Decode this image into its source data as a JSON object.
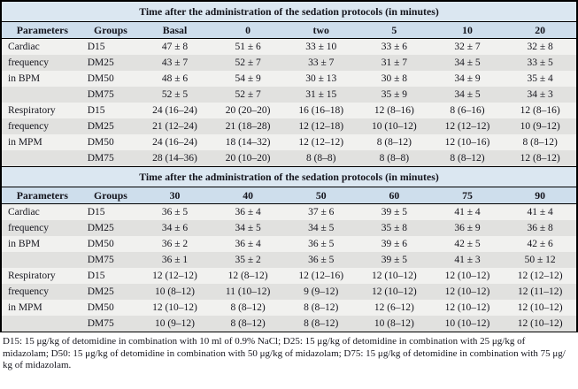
{
  "colors": {
    "title_bg": "#dbe7f1",
    "header_bg": "#cedeec",
    "row_light": "#f1f1ef",
    "row_dark": "#e1e1df",
    "border": "#000000",
    "text": "#15151d"
  },
  "tables": [
    {
      "title": "Time after the administration of the sedation protocols (in minutes)",
      "headers": [
        "Parameters",
        "Groups",
        "Basal",
        "0",
        "two",
        "5",
        "10",
        "20"
      ],
      "rows": [
        {
          "parameter": "Cardiac",
          "group": "D15",
          "values": [
            "47 ± 8",
            "51 ± 6",
            "33 ± 10",
            "33 ± 6",
            "32 ± 7",
            "32 ± 8"
          ]
        },
        {
          "parameter": "frequency",
          "group": "DM25",
          "values": [
            "43 ± 7",
            "52 ± 7",
            "33 ± 7",
            "31 ± 7",
            "34 ± 5",
            "33 ± 5"
          ]
        },
        {
          "parameter": "in BPM",
          "group": "DM50",
          "values": [
            "48 ± 6",
            "54 ± 9",
            "30 ± 13",
            "30 ± 8",
            "34 ± 9",
            "35 ± 4"
          ]
        },
        {
          "parameter": "",
          "group": "DM75",
          "values": [
            "52 ± 5",
            "52 ± 7",
            "31 ± 15",
            "35 ± 9",
            "34 ± 5",
            "34 ± 3"
          ]
        },
        {
          "parameter": "Respiratory",
          "group": "D15",
          "values": [
            "24 (16–24)",
            "20 (20–20)",
            "16 (16–18)",
            "12 (8–16)",
            "8 (6–16)",
            "12 (8–16)"
          ]
        },
        {
          "parameter": "frequency",
          "group": "DM25",
          "values": [
            "21 (12–24)",
            "21 (18–28)",
            "12 (12–18)",
            "10 (10–12)",
            "12 (12–12)",
            "10 (9–12)"
          ]
        },
        {
          "parameter": "in MPM",
          "group": "DM50",
          "values": [
            "24 (16–24)",
            "18 (14–32)",
            "12 (12–12)",
            "8 (8–12)",
            "12 (10–16)",
            "8 (8–12)"
          ]
        },
        {
          "parameter": "",
          "group": "DM75",
          "values": [
            "28 (14–36)",
            "20 (10–20)",
            "8 (8–8)",
            "8 (8–8)",
            "8 (8–12)",
            "12 (8–12)"
          ]
        }
      ]
    },
    {
      "title": "Time after the administration of the sedation protocols (in minutes)",
      "headers": [
        "Parameters",
        "Groups",
        "30",
        "40",
        "50",
        "60",
        "75",
        "90"
      ],
      "rows": [
        {
          "parameter": "Cardiac",
          "group": "D15",
          "values": [
            "36 ± 5",
            "36 ± 4",
            "37 ± 6",
            "39 ± 5",
            "41 ± 4",
            "41 ± 4"
          ]
        },
        {
          "parameter": "frequency",
          "group": "DM25",
          "values": [
            "34 ± 6",
            "34 ± 5",
            "34 ± 5",
            "35 ± 8",
            "36 ± 9",
            "36 ± 8"
          ]
        },
        {
          "parameter": "in BPM",
          "group": "DM50",
          "values": [
            "36 ± 2",
            "36 ± 4",
            "36 ± 5",
            "39 ± 6",
            "42 ± 5",
            "42 ± 6"
          ]
        },
        {
          "parameter": "",
          "group": "DM75",
          "values": [
            "36 ± 1",
            "35 ± 2",
            "36 ± 5",
            "39 ± 5",
            "41 ± 3",
            "50 ± 12"
          ]
        },
        {
          "parameter": "Respiratory",
          "group": "D15",
          "values": [
            "12 (12–12)",
            "12 (8–12)",
            "12 (12–16)",
            "12 (10–12)",
            "12 (10–12)",
            "12 (12–12)"
          ]
        },
        {
          "parameter": "frequency",
          "group": "DM25",
          "values": [
            "10 (8–12)",
            "11 (10–12)",
            "9 (9–12)",
            "12 (10–12)",
            "12 (10–12)",
            "12 (11–12)"
          ]
        },
        {
          "parameter": "in MPM",
          "group": "DM50",
          "values": [
            "12 (10–12)",
            "8 (8–12)",
            "8 (8–12)",
            "12 (6–12)",
            "12 (10–12)",
            "12 (10–12)"
          ]
        },
        {
          "parameter": "",
          "group": "DM75",
          "values": [
            "10 (9–12)",
            "8 (8–12)",
            "8 (8–12)",
            "10 (8–12)",
            "10 (10–12)",
            "12 (10–12)"
          ]
        }
      ]
    }
  ],
  "footnote": {
    "lines": [
      "D15: 15 μg/kg of detomidine in combination with 10 ml of 0.9% NaCl; D25: 15 μg/kg of detomidine in combination with 25 μg/kg of",
      "midazolam; D50: 15 μg/kg of detomidine in combination with 50 μg/kg of midazolam; D75: 15 μg/kg of detomidine in combination with 75 μg/",
      "kg of midazolam."
    ]
  }
}
